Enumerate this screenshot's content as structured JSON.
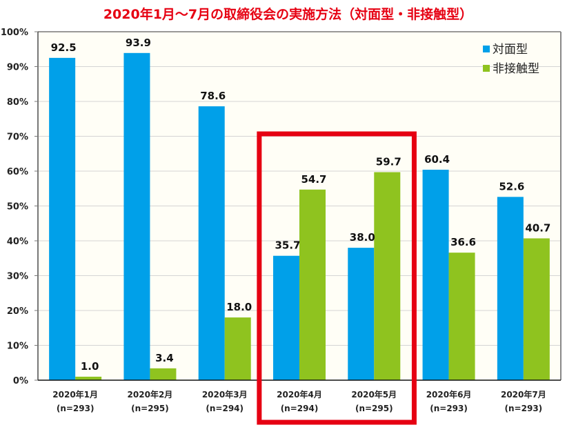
{
  "chart_data": {
    "type": "bar",
    "title": "2020年1月～7月の取締役会の実施方法（対面型・非接触型）",
    "xlabel": "",
    "ylabel": "",
    "ylim": [
      0,
      100
    ],
    "yticks": [
      "0%",
      "10%",
      "20%",
      "30%",
      "40%",
      "50%",
      "60%",
      "70%",
      "80%",
      "90%",
      "100%"
    ],
    "grid": true,
    "legend_position": "top-right",
    "categories": [
      {
        "month": "2020年1月",
        "n": "(n=293)"
      },
      {
        "month": "2020年2月",
        "n": "(n=295)"
      },
      {
        "month": "2020年3月",
        "n": "(n=294)"
      },
      {
        "month": "2020年4月",
        "n": "(n=294)"
      },
      {
        "month": "2020年5月",
        "n": "(n=295)"
      },
      {
        "month": "2020年6月",
        "n": "(n=293)"
      },
      {
        "month": "2020年7月",
        "n": "(n=293)"
      }
    ],
    "series": [
      {
        "name": "対面型",
        "color": "#00a0e9",
        "values": [
          92.5,
          93.9,
          78.6,
          35.7,
          38.0,
          60.4,
          52.6
        ],
        "labels": [
          "92.5",
          "93.9",
          "78.6",
          "35.7",
          "38.0",
          "60.4",
          "52.6"
        ]
      },
      {
        "name": "非接触型",
        "color": "#8fc31f",
        "values": [
          1.0,
          3.4,
          18.0,
          54.7,
          59.7,
          36.6,
          40.7
        ],
        "labels": [
          "1.0",
          "3.4",
          "18.0",
          "54.7",
          "59.7",
          "36.6",
          "40.7"
        ]
      }
    ],
    "highlight": {
      "categories": [
        "2020年4月",
        "2020年5月"
      ],
      "color": "#e60012"
    },
    "plot_background": "#fffef6"
  }
}
